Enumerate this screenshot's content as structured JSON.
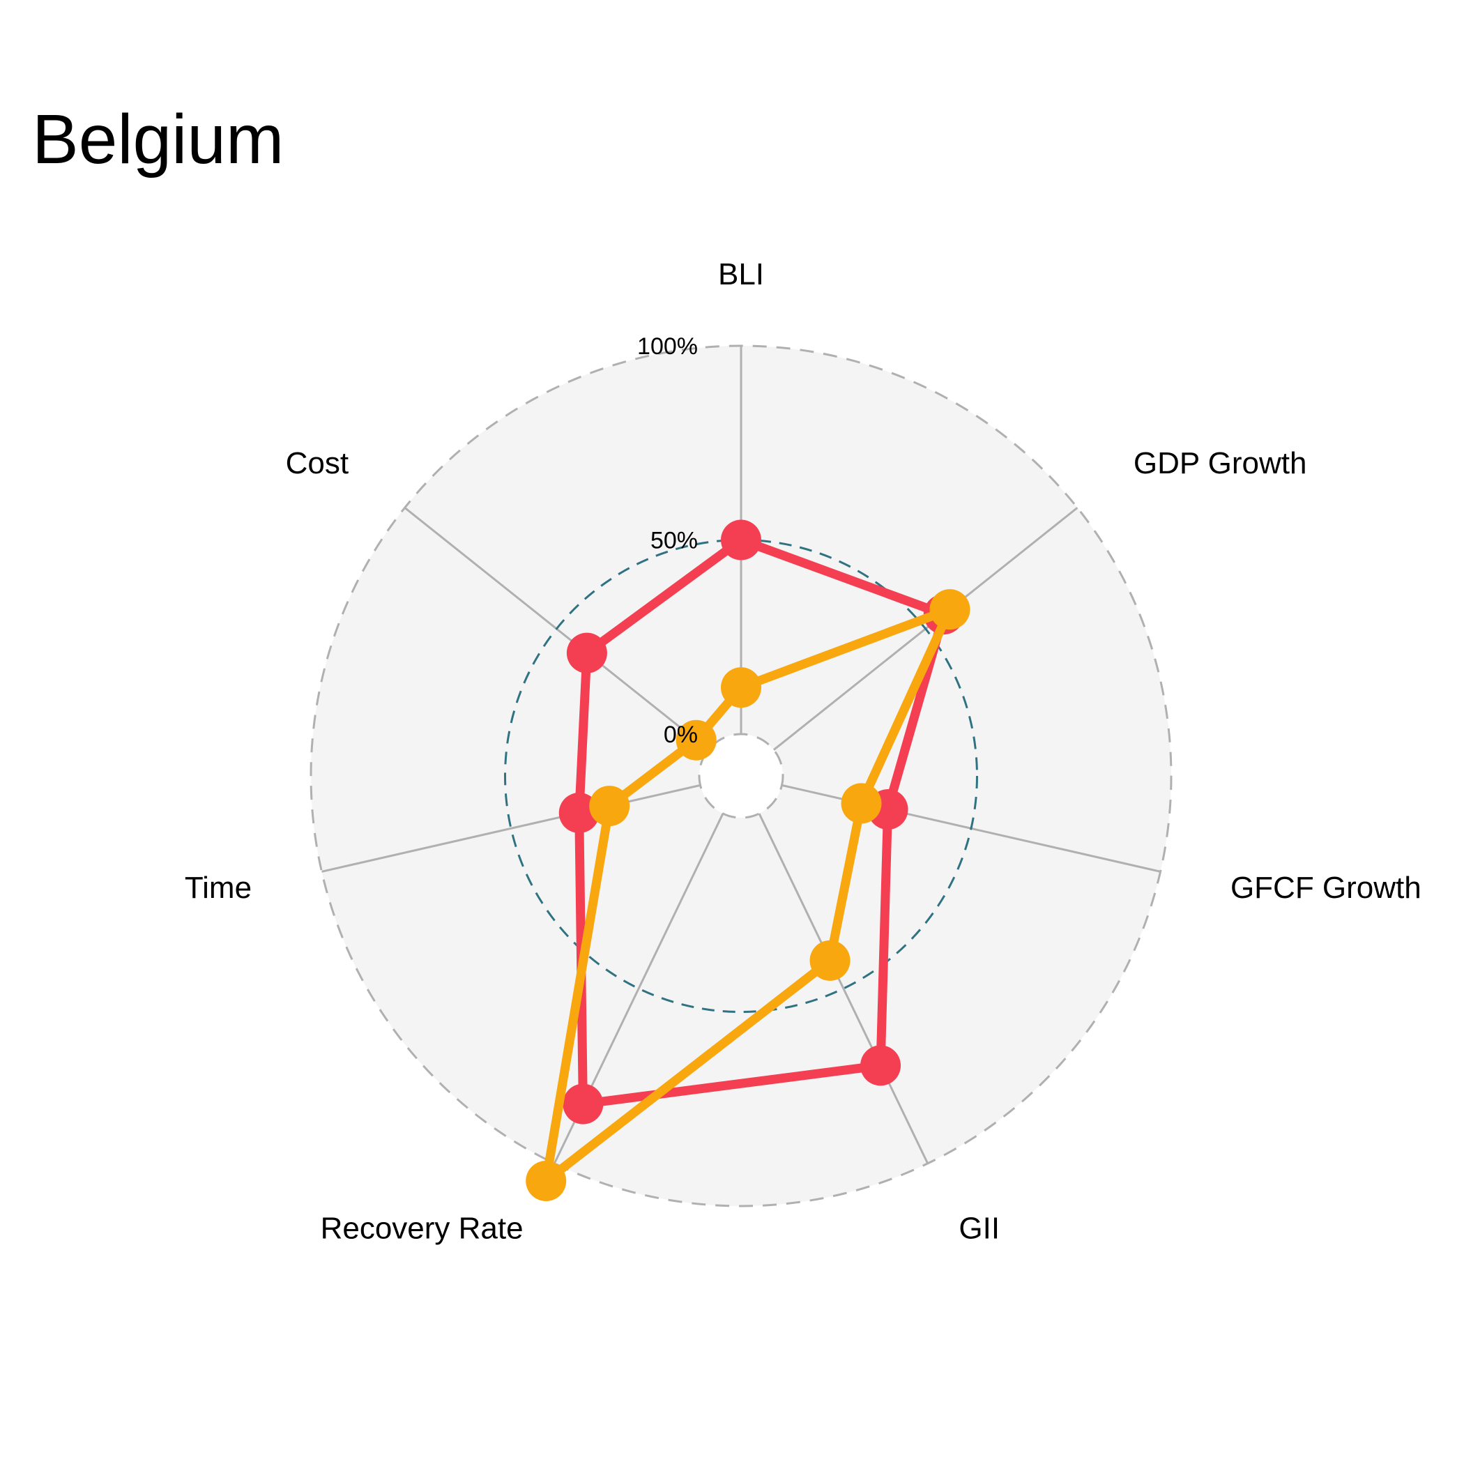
{
  "chart_data": {
    "type": "radar",
    "title": "Belgium",
    "axes": [
      "BLI",
      "GDP Growth",
      "GFCF Growth",
      "GII",
      "Recovery Rate",
      "Time",
      "Cost"
    ],
    "rings": [
      {
        "value": 0,
        "label": "0%"
      },
      {
        "value": 50,
        "label": "50%"
      },
      {
        "value": 100,
        "label": "100%"
      }
    ],
    "ylim": [
      0,
      100
    ],
    "series": [
      {
        "color": "#F43F52",
        "values": [
          50,
          56,
          28,
          72,
          83,
          32,
          40
        ]
      },
      {
        "color": "#F8A70E",
        "values": [
          12,
          58,
          21,
          42,
          105,
          24,
          4
        ]
      }
    ],
    "colors": {
      "background_disc": "#F4F4F4",
      "outer_ring": "#B0B0B0",
      "mid_ring": "#2F7282",
      "spoke": "#B0B0B0"
    }
  }
}
